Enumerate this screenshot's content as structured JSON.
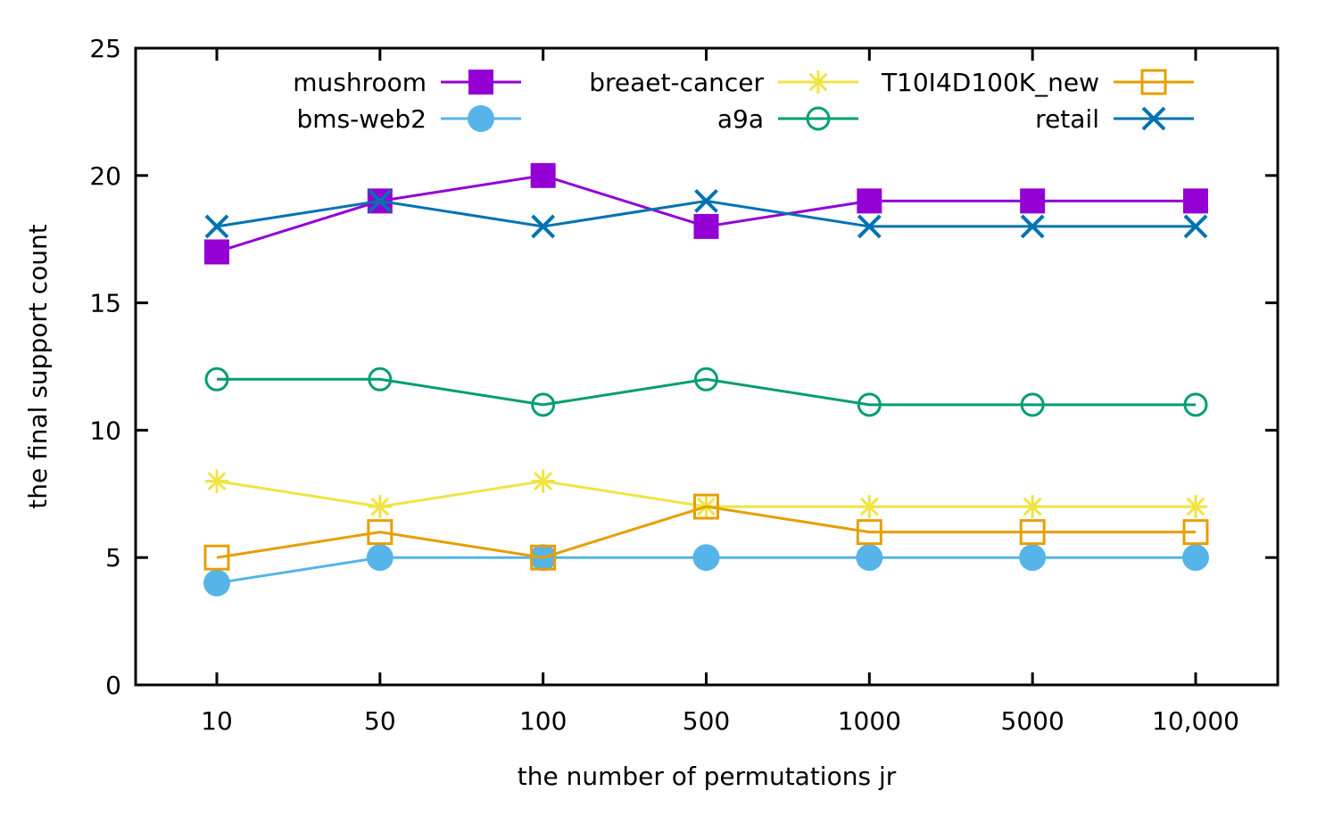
{
  "chart_data": {
    "type": "line",
    "title": "",
    "xlabel": "the number of permutations jr",
    "ylabel": "the final support count",
    "categories": [
      "10",
      "50",
      "100",
      "500",
      "1000",
      "5000",
      "10,000"
    ],
    "ylim": [
      0,
      25
    ],
    "yticks": [
      "0",
      "5",
      "10",
      "15",
      "20",
      "25"
    ],
    "grid": false,
    "legend_position": "top",
    "series": [
      {
        "name": "mushroom",
        "color": "#9400d3",
        "marker": "filled-square",
        "values": [
          17,
          19,
          20,
          18,
          19,
          19,
          19
        ]
      },
      {
        "name": "bms-web2",
        "color": "#56b4e9",
        "marker": "filled-circle",
        "values": [
          4,
          5,
          5,
          5,
          5,
          5,
          5
        ]
      },
      {
        "name": "breaet-cancer",
        "color": "#f0e442",
        "marker": "star",
        "values": [
          8,
          7,
          8,
          7,
          7,
          7,
          7
        ]
      },
      {
        "name": "a9a",
        "color": "#009e73",
        "marker": "open-circle",
        "values": [
          12,
          12,
          11,
          12,
          11,
          11,
          11
        ]
      },
      {
        "name": "T10I4D100K_new",
        "color": "#e69f00",
        "marker": "open-square",
        "values": [
          5,
          6,
          5,
          7,
          6,
          6,
          6
        ]
      },
      {
        "name": "retail",
        "color": "#0072b2",
        "marker": "cross",
        "values": [
          18,
          19,
          18,
          19,
          18,
          18,
          18
        ]
      }
    ]
  }
}
